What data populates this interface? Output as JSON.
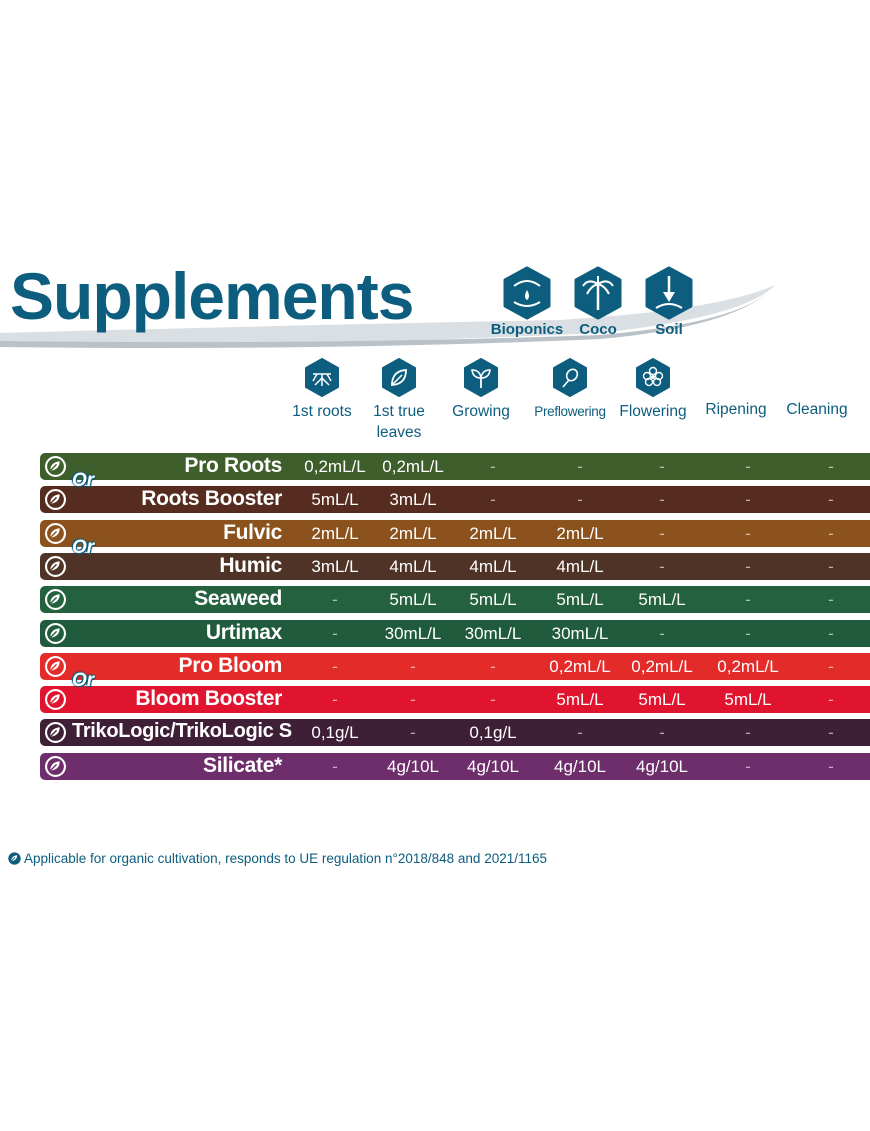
{
  "header": {
    "title": "Supplements",
    "media": [
      {
        "label": "Bioponics",
        "icon": "hands-drop-icon"
      },
      {
        "label": "Coco",
        "icon": "palm-tree-icon"
      },
      {
        "label": "Soil",
        "icon": "shovel-icon"
      }
    ]
  },
  "stages": [
    {
      "label": "1st roots",
      "icon": "roots-icon"
    },
    {
      "label": "1st true leaves",
      "icon": "leaf-icon"
    },
    {
      "label": "Growing",
      "icon": "sprout-icon"
    },
    {
      "label": "Preflowering",
      "icon": "preflower-icon"
    },
    {
      "label": "Flowering",
      "icon": "flower-icon"
    },
    {
      "label": "Ripening",
      "icon": ""
    },
    {
      "label": "Cleaning",
      "icon": ""
    }
  ],
  "or_label": "Or",
  "products": [
    {
      "name": "Pro Roots",
      "color": "#3e5f2b",
      "values": [
        "0,2mL/L",
        "0,2mL/L",
        "-",
        "-",
        "-",
        "-",
        "-"
      ]
    },
    {
      "name": "Roots Booster",
      "color": "#552c1f",
      "values": [
        "5mL/L",
        "3mL/L",
        "-",
        "-",
        "-",
        "-",
        "-"
      ]
    },
    {
      "name": "Fulvic",
      "color": "#8c521e",
      "values": [
        "2mL/L",
        "2mL/L",
        "2mL/L",
        "2mL/L",
        "-",
        "-",
        "-"
      ]
    },
    {
      "name": "Humic",
      "color": "#4e3326",
      "values": [
        "3mL/L",
        "4mL/L",
        "4mL/L",
        "4mL/L",
        "-",
        "-",
        "-"
      ]
    },
    {
      "name": "Seaweed",
      "color": "#24613f",
      "values": [
        "-",
        "5mL/L",
        "5mL/L",
        "5mL/L",
        "5mL/L",
        "-",
        "-"
      ]
    },
    {
      "name": "Urtimax",
      "color": "#1f5b3c",
      "values": [
        "-",
        "30mL/L",
        "30mL/L",
        "30mL/L",
        "-",
        "-",
        "-"
      ]
    },
    {
      "name": "Pro Bloom",
      "color": "#e32b2a",
      "values": [
        "-",
        "-",
        "-",
        "0,2mL/L",
        "0,2mL/L",
        "0,2mL/L",
        "-"
      ]
    },
    {
      "name": "Bloom Booster",
      "color": "#e0142e",
      "values": [
        "-",
        "-",
        "-",
        "5mL/L",
        "5mL/L",
        "5mL/L",
        "-"
      ]
    },
    {
      "name": "TrikoLogic/TrikoLogic S",
      "color": "#3f1f36",
      "values": [
        "0,1g/L",
        "-",
        "0,1g/L",
        "-",
        "-",
        "-",
        "-"
      ]
    },
    {
      "name": "Silicate*",
      "color": "#6e2d6b",
      "values": [
        "-",
        "4g/10L",
        "4g/10L",
        "4g/10L",
        "4g/10L",
        "-",
        "-"
      ]
    }
  ],
  "footnote": "Applicable for organic cultivation, responds to UE regulation n°2018/848 and 2021/1165",
  "colors": {
    "brand": "#0d5d7e"
  }
}
